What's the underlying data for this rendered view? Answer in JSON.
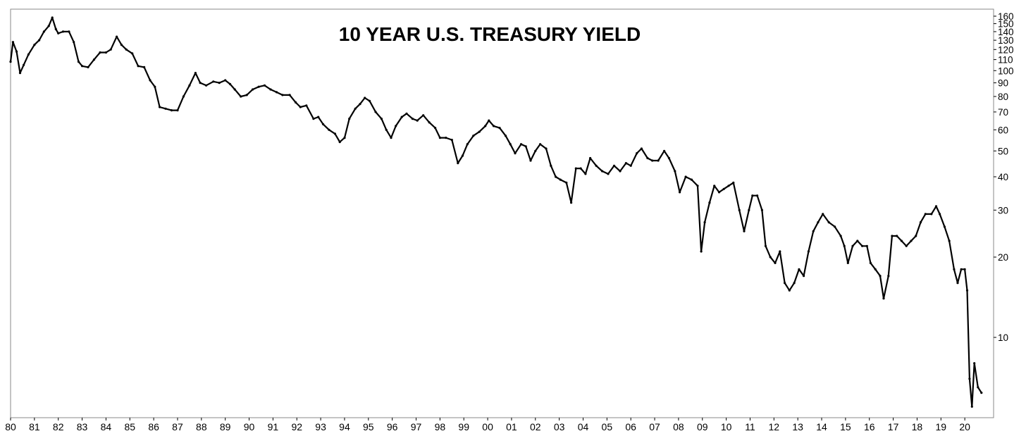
{
  "chart_data": {
    "type": "line",
    "title": "10 YEAR U.S. TREASURY YIELD",
    "xlabel": "",
    "ylabel": "",
    "y_scale": "log",
    "ylim": [
      5,
      170
    ],
    "grid": false,
    "legend": "none",
    "x_tick_labels": [
      "80",
      "81",
      "82",
      "83",
      "84",
      "85",
      "86",
      "87",
      "88",
      "89",
      "90",
      "91",
      "92",
      "93",
      "94",
      "95",
      "96",
      "97",
      "98",
      "99",
      "00",
      "01",
      "02",
      "03",
      "04",
      "05",
      "06",
      "07",
      "08",
      "09",
      "10",
      "11",
      "12",
      "13",
      "14",
      "15",
      "16",
      "17",
      "18",
      "19",
      "20"
    ],
    "y_tick_labels": [
      "160",
      "150",
      "140",
      "130",
      "120",
      "110",
      "100",
      "90",
      "80",
      "70",
      "60",
      "50",
      "40",
      "30",
      "20",
      "10"
    ],
    "y_tick_values": [
      160,
      150,
      140,
      130,
      120,
      110,
      100,
      90,
      80,
      70,
      60,
      50,
      40,
      30,
      20,
      10
    ],
    "series": [
      {
        "color": "#000000",
        "points": [
          [
            1980.0,
            108
          ],
          [
            1980.1,
            128
          ],
          [
            1980.25,
            118
          ],
          [
            1980.4,
            98
          ],
          [
            1980.55,
            105
          ],
          [
            1980.75,
            115
          ],
          [
            1981.0,
            125
          ],
          [
            1981.2,
            130
          ],
          [
            1981.4,
            140
          ],
          [
            1981.6,
            147
          ],
          [
            1981.75,
            158
          ],
          [
            1981.9,
            143
          ],
          [
            1982.0,
            138
          ],
          [
            1982.2,
            140
          ],
          [
            1982.45,
            140
          ],
          [
            1982.65,
            128
          ],
          [
            1982.85,
            108
          ],
          [
            1983.0,
            104
          ],
          [
            1983.25,
            103
          ],
          [
            1983.5,
            110
          ],
          [
            1983.75,
            117
          ],
          [
            1984.0,
            117
          ],
          [
            1984.2,
            120
          ],
          [
            1984.45,
            134
          ],
          [
            1984.65,
            125
          ],
          [
            1984.85,
            120
          ],
          [
            1985.1,
            116
          ],
          [
            1985.35,
            104
          ],
          [
            1985.6,
            103
          ],
          [
            1985.85,
            92
          ],
          [
            1986.05,
            87
          ],
          [
            1986.25,
            73
          ],
          [
            1986.5,
            72
          ],
          [
            1986.75,
            71
          ],
          [
            1987.0,
            71
          ],
          [
            1987.25,
            80
          ],
          [
            1987.5,
            88
          ],
          [
            1987.75,
            98
          ],
          [
            1987.95,
            90
          ],
          [
            1988.2,
            88
          ],
          [
            1988.5,
            91
          ],
          [
            1988.75,
            90
          ],
          [
            1989.0,
            92
          ],
          [
            1989.2,
            89
          ],
          [
            1989.4,
            85
          ],
          [
            1989.65,
            80
          ],
          [
            1989.9,
            81
          ],
          [
            1990.15,
            85
          ],
          [
            1990.4,
            87
          ],
          [
            1990.65,
            88
          ],
          [
            1990.9,
            85
          ],
          [
            1991.15,
            83
          ],
          [
            1991.4,
            81
          ],
          [
            1991.7,
            81
          ],
          [
            1991.95,
            76
          ],
          [
            1992.15,
            73
          ],
          [
            1992.4,
            74
          ],
          [
            1992.7,
            66
          ],
          [
            1992.9,
            67
          ],
          [
            1993.1,
            63
          ],
          [
            1993.35,
            60
          ],
          [
            1993.6,
            58
          ],
          [
            1993.8,
            54
          ],
          [
            1994.0,
            56
          ],
          [
            1994.2,
            66
          ],
          [
            1994.45,
            72
          ],
          [
            1994.65,
            75
          ],
          [
            1994.85,
            79
          ],
          [
            1995.05,
            77
          ],
          [
            1995.3,
            70
          ],
          [
            1995.55,
            66
          ],
          [
            1995.75,
            60
          ],
          [
            1995.95,
            56
          ],
          [
            1996.15,
            62
          ],
          [
            1996.4,
            67
          ],
          [
            1996.6,
            69
          ],
          [
            1996.85,
            66
          ],
          [
            1997.05,
            65
          ],
          [
            1997.3,
            68
          ],
          [
            1997.55,
            64
          ],
          [
            1997.8,
            61
          ],
          [
            1998.0,
            56
          ],
          [
            1998.25,
            56
          ],
          [
            1998.5,
            55
          ],
          [
            1998.75,
            45
          ],
          [
            1998.95,
            48
          ],
          [
            1999.15,
            53
          ],
          [
            1999.4,
            57
          ],
          [
            1999.65,
            59
          ],
          [
            1999.9,
            62
          ],
          [
            2000.05,
            65
          ],
          [
            2000.25,
            62
          ],
          [
            2000.5,
            61
          ],
          [
            2000.75,
            57
          ],
          [
            2000.95,
            53
          ],
          [
            2001.15,
            49
          ],
          [
            2001.4,
            53
          ],
          [
            2001.6,
            52
          ],
          [
            2001.8,
            46
          ],
          [
            2002.0,
            50
          ],
          [
            2002.2,
            53
          ],
          [
            2002.45,
            51
          ],
          [
            2002.65,
            44
          ],
          [
            2002.85,
            40
          ],
          [
            2003.05,
            39
          ],
          [
            2003.3,
            38
          ],
          [
            2003.5,
            32
          ],
          [
            2003.7,
            43
          ],
          [
            2003.9,
            43
          ],
          [
            2004.1,
            41
          ],
          [
            2004.3,
            47
          ],
          [
            2004.55,
            44
          ],
          [
            2004.8,
            42
          ],
          [
            2005.05,
            41
          ],
          [
            2005.3,
            44
          ],
          [
            2005.55,
            42
          ],
          [
            2005.8,
            45
          ],
          [
            2006.0,
            44
          ],
          [
            2006.25,
            49
          ],
          [
            2006.45,
            51
          ],
          [
            2006.7,
            47
          ],
          [
            2006.9,
            46
          ],
          [
            2007.15,
            46
          ],
          [
            2007.4,
            50
          ],
          [
            2007.6,
            47
          ],
          [
            2007.85,
            42
          ],
          [
            2008.05,
            35
          ],
          [
            2008.3,
            40
          ],
          [
            2008.55,
            39
          ],
          [
            2008.8,
            37
          ],
          [
            2008.95,
            21
          ],
          [
            2009.1,
            27
          ],
          [
            2009.3,
            32
          ],
          [
            2009.5,
            37
          ],
          [
            2009.7,
            35
          ],
          [
            2009.9,
            36
          ],
          [
            2010.1,
            37
          ],
          [
            2010.3,
            38
          ],
          [
            2010.55,
            30
          ],
          [
            2010.75,
            25
          ],
          [
            2010.95,
            30
          ],
          [
            2011.1,
            34
          ],
          [
            2011.3,
            34
          ],
          [
            2011.5,
            30
          ],
          [
            2011.65,
            22
          ],
          [
            2011.85,
            20
          ],
          [
            2012.05,
            19
          ],
          [
            2012.25,
            21
          ],
          [
            2012.45,
            16
          ],
          [
            2012.65,
            15
          ],
          [
            2012.85,
            16
          ],
          [
            2013.05,
            18
          ],
          [
            2013.25,
            17
          ],
          [
            2013.45,
            21
          ],
          [
            2013.65,
            25
          ],
          [
            2013.85,
            27
          ],
          [
            2014.05,
            29
          ],
          [
            2014.3,
            27
          ],
          [
            2014.55,
            26
          ],
          [
            2014.8,
            24
          ],
          [
            2014.95,
            22
          ],
          [
            2015.1,
            19
          ],
          [
            2015.3,
            22
          ],
          [
            2015.5,
            23
          ],
          [
            2015.7,
            22
          ],
          [
            2015.9,
            22
          ],
          [
            2016.05,
            19
          ],
          [
            2016.25,
            18
          ],
          [
            2016.45,
            17
          ],
          [
            2016.6,
            14
          ],
          [
            2016.8,
            17
          ],
          [
            2016.95,
            24
          ],
          [
            2017.15,
            24
          ],
          [
            2017.35,
            23
          ],
          [
            2017.55,
            22
          ],
          [
            2017.75,
            23
          ],
          [
            2017.95,
            24
          ],
          [
            2018.15,
            27
          ],
          [
            2018.35,
            29
          ],
          [
            2018.6,
            29
          ],
          [
            2018.8,
            31
          ],
          [
            2018.95,
            29
          ],
          [
            2019.15,
            26
          ],
          [
            2019.35,
            23
          ],
          [
            2019.55,
            18
          ],
          [
            2019.7,
            16
          ],
          [
            2019.85,
            18
          ],
          [
            2020.0,
            18
          ],
          [
            2020.1,
            15
          ],
          [
            2020.2,
            7
          ],
          [
            2020.3,
            5.5
          ],
          [
            2020.4,
            8
          ],
          [
            2020.55,
            6.5
          ],
          [
            2020.7,
            6.2
          ]
        ]
      }
    ]
  }
}
